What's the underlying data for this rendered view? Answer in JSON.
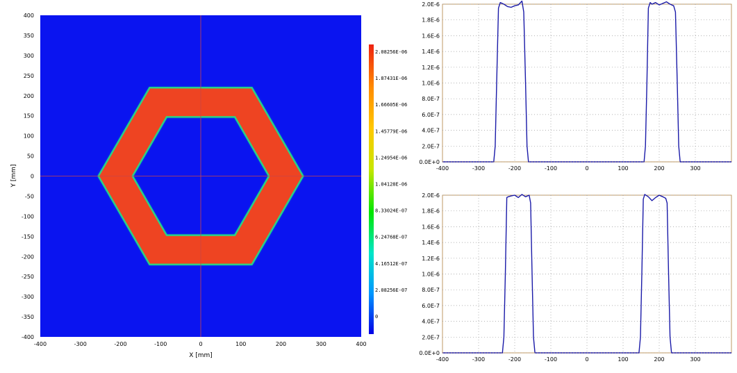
{
  "chart_data": [
    {
      "type": "heatmap",
      "xlabel": "X [mm]",
      "ylabel": "Y [mm]",
      "xlim": [
        -400,
        400
      ],
      "ylim": [
        -400,
        400
      ],
      "x_ticks": [
        "-400",
        "-300",
        "-200",
        "-100",
        "0",
        "100",
        "200",
        "300",
        "400"
      ],
      "y_ticks": [
        "400",
        "350",
        "300",
        "250",
        "200",
        "150",
        "100",
        "50",
        "0",
        "-50",
        "-100",
        "-150",
        "-200",
        "-250",
        "-300",
        "-350",
        "-400"
      ],
      "shape": {
        "kind": "hexagonal ring",
        "outer_vertices": [
          [
            -255,
            0
          ],
          [
            -127.5,
            220
          ],
          [
            127.5,
            220
          ],
          [
            255,
            0
          ],
          [
            127.5,
            -220
          ],
          [
            -127.5,
            -220
          ]
        ],
        "inner_vertices": [
          [
            -170,
            0
          ],
          [
            -85,
            147
          ],
          [
            85,
            147
          ],
          [
            170,
            0
          ],
          [
            85,
            -147
          ],
          [
            -85,
            -147
          ]
        ],
        "ring_value": 2e-06,
        "background_value": 0
      },
      "colorbar": {
        "min": 0,
        "max": 2.08256e-06,
        "labels": [
          "2.08256E-06",
          "1.87431E-06",
          "1.66605E-06",
          "1.45779E-06",
          "1.24954E-06",
          "1.04128E-06",
          "8.33024E-07",
          "6.24768E-07",
          "4.16512E-07",
          "2.08256E-07",
          "0"
        ],
        "colors": [
          "#0000e6",
          "#0096ff",
          "#00e6c8",
          "#00e600",
          "#c8e600",
          "#ffc800",
          "#ff8c00",
          "#ee4422"
        ]
      },
      "crosshair_color": "#cc4444",
      "background_color": "#0a14f0",
      "ring_color": "#ee4422"
    },
    {
      "type": "line",
      "xlim": [
        -400,
        400
      ],
      "ylim": [
        0,
        2e-06
      ],
      "x_ticks": [
        "-400",
        "-300",
        "-200",
        "-100",
        "0",
        "100",
        "200",
        "300"
      ],
      "y_ticks": [
        "2.0E-6",
        "1.8E-6",
        "1.6E-6",
        "1.4E-6",
        "1.2E-6",
        "1.0E-6",
        "8.0E-7",
        "6.0E-7",
        "4.0E-7",
        "2.0E-7",
        "0.0E+0"
      ],
      "series": [
        {
          "color": "#1a1aa8",
          "x": [
            -400,
            -258,
            -254,
            -250,
            -245,
            -240,
            -230,
            -220,
            -210,
            -200,
            -190,
            -180,
            -175,
            -170,
            -166,
            -162,
            -158,
            -150,
            150,
            158,
            162,
            166,
            170,
            175,
            180,
            190,
            200,
            210,
            220,
            230,
            240,
            245,
            250,
            254,
            258,
            400
          ],
          "y": [
            0,
            0,
            2e-07,
            1e-06,
            1.95e-06,
            2.02e-06,
            2e-06,
            1.97e-06,
            1.96e-06,
            1.98e-06,
            1.99e-06,
            2.04e-06,
            1.9e-06,
            1e-06,
            2e-07,
            0.0,
            0,
            0,
            0,
            0,
            2e-07,
            1e-06,
            1.95e-06,
            2.02e-06,
            2e-06,
            2.02e-06,
            1.99e-06,
            2.01e-06,
            2.03e-06,
            2e-06,
            1.98e-06,
            1.9e-06,
            1e-06,
            2e-07,
            0,
            0
          ]
        }
      ]
    },
    {
      "type": "line",
      "xlim": [
        -400,
        400
      ],
      "ylim": [
        0,
        2e-06
      ],
      "x_ticks": [
        "-400",
        "-300",
        "-200",
        "-100",
        "0",
        "100",
        "200",
        "300"
      ],
      "y_ticks": [
        "2.0E-6",
        "1.8E-6",
        "1.6E-6",
        "1.4E-6",
        "1.2E-6",
        "1.0E-6",
        "8.0E-7",
        "6.0E-7",
        "4.0E-7",
        "2.0E-7",
        "0.0E+0"
      ],
      "series": [
        {
          "color": "#1a1aa8",
          "x": [
            -400,
            -234,
            -230,
            -226,
            -222,
            -218,
            -210,
            -200,
            -190,
            -180,
            -170,
            -160,
            -156,
            -152,
            -148,
            -144,
            -140,
            140,
            144,
            148,
            152,
            156,
            160,
            170,
            180,
            190,
            200,
            210,
            218,
            222,
            226,
            230,
            234,
            400
          ],
          "y": [
            0,
            0,
            2e-07,
            1e-06,
            1.97e-06,
            1.98e-06,
            1.99e-06,
            2e-06,
            1.97e-06,
            2.01e-06,
            1.98e-06,
            2e-06,
            1.9e-06,
            1e-06,
            2e-07,
            0,
            0,
            0,
            0,
            2e-07,
            1e-06,
            1.95e-06,
            2.01e-06,
            1.98e-06,
            1.93e-06,
            1.97e-06,
            2e-06,
            1.98e-06,
            1.96e-06,
            1.9e-06,
            1e-06,
            2e-07,
            0,
            0
          ]
        }
      ]
    }
  ]
}
